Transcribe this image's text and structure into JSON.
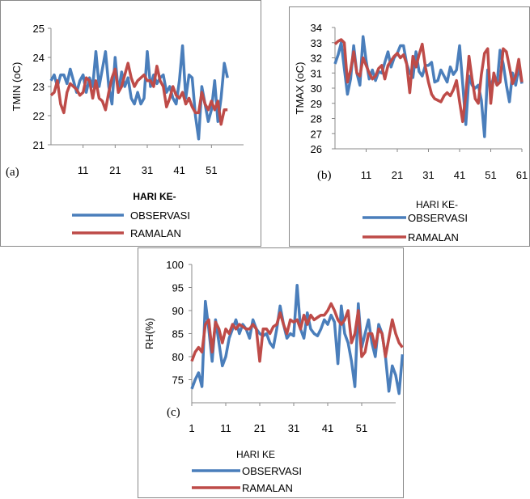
{
  "chart_data": [
    {
      "type": "line",
      "panel_label": "(a)",
      "ylabel": "TMIN (oC)",
      "xlabel": "HARI KE-",
      "ylim": [
        21,
        25
      ],
      "yticks": [
        21,
        22,
        23,
        24,
        25
      ],
      "xlim": [
        1,
        61
      ],
      "xticks": [
        "11",
        "21",
        "31",
        "41",
        "51"
      ],
      "xtick_values": [
        11,
        21,
        31,
        41,
        51
      ],
      "grid": false,
      "legend": "bottom",
      "colors": {
        "OBSERVASI": "#4a7ebb",
        "RAMALAN": "#be4b48"
      },
      "series": [
        {
          "name": "OBSERVASI",
          "x_start": 1,
          "values": [
            23.2,
            23.4,
            23.0,
            23.4,
            23.4,
            23.1,
            23.6,
            23.2,
            22.8,
            23.2,
            23.4,
            22.8,
            23.3,
            23.0,
            24.2,
            23.0,
            23.6,
            24.2,
            23.0,
            22.4,
            24.0,
            22.8,
            23.5,
            23.0,
            23.3,
            22.6,
            22.4,
            22.8,
            22.4,
            22.6,
            24.2,
            23.0,
            23.4,
            23.1,
            23.3,
            23.4,
            22.8,
            23.0,
            22.6,
            22.4,
            23.2,
            24.4,
            22.6,
            23.4,
            23.3,
            22.0,
            21.2,
            23.0,
            22.4,
            21.8,
            22.2,
            23.2,
            21.8,
            22.6,
            23.8,
            23.3
          ]
        },
        {
          "name": "RAMALAN",
          "x_start": 1,
          "values": [
            22.7,
            22.8,
            23.2,
            22.4,
            22.1,
            22.8,
            23.1,
            23.0,
            22.9,
            22.7,
            22.8,
            23.3,
            23.2,
            22.6,
            23.2,
            22.6,
            22.5,
            22.2,
            22.8,
            23.3,
            23.6,
            22.8,
            23.0,
            23.4,
            23.8,
            23.3,
            23.0,
            23.2,
            23.3,
            23.4,
            23.2,
            23.2,
            23.0,
            23.7,
            23.2,
            23.0,
            22.3,
            22.6,
            23.0,
            22.7,
            22.6,
            22.8,
            22.4,
            22.6,
            22.3,
            22.1,
            22.1,
            22.8,
            22.4,
            22.2,
            22.5,
            22.2,
            22.5,
            21.7,
            22.2,
            22.2
          ]
        }
      ]
    },
    {
      "type": "line",
      "panel_label": "(b)",
      "ylabel": "TMAX (oC)",
      "xlabel": "HARI KE-",
      "ylim": [
        26,
        34
      ],
      "yticks": [
        26,
        27,
        28,
        29,
        30,
        31,
        32,
        33,
        34
      ],
      "xlim": [
        1,
        61
      ],
      "xticks": [
        "11",
        "21",
        "31",
        "41",
        "51",
        "61"
      ],
      "xtick_values": [
        11,
        21,
        31,
        41,
        51,
        61
      ],
      "grid": false,
      "legend": "bottom",
      "colors": {
        "OBSERVASI": "#4a7ebb",
        "RAMALAN": "#be4b48"
      },
      "series": [
        {
          "name": "OBSERVASI",
          "x_start": 1,
          "values": [
            31.6,
            32.2,
            33.0,
            31.3,
            29.6,
            30.6,
            32.8,
            31.0,
            30.2,
            33.4,
            31.8,
            30.6,
            31.2,
            30.5,
            31.1,
            31.0,
            31.7,
            32.4,
            31.4,
            32.0,
            32.3,
            32.8,
            32.8,
            31.6,
            31.0,
            30.7,
            32.4,
            31.1,
            30.8,
            31.5,
            31.5,
            31.7,
            30.4,
            30.5,
            31.2,
            30.8,
            30.4,
            31.4,
            30.9,
            31.2,
            32.8,
            30.3,
            27.6,
            30.8,
            30.2,
            30.0,
            30.2,
            29.2,
            26.8,
            31.2,
            30.0,
            30.8,
            30.2,
            32.5,
            31.6,
            30.2,
            29.1,
            31.0,
            30.2,
            31.4,
            30.3
          ]
        },
        {
          "name": "RAMALAN",
          "x_start": 1,
          "values": [
            32.9,
            33.1,
            33.2,
            33.0,
            30.4,
            31.2,
            32.4,
            31.0,
            30.8,
            32.0,
            31.5,
            31.0,
            30.6,
            30.8,
            31.3,
            31.5,
            30.6,
            31.5,
            31.8,
            32.1,
            32.3,
            32.0,
            32.2,
            31.6,
            29.7,
            32.1,
            31.4,
            32.2,
            32.9,
            31.4,
            30.4,
            29.6,
            29.3,
            29.2,
            29.1,
            29.5,
            29.7,
            29.5,
            29.9,
            30.5,
            29.1,
            27.8,
            29.6,
            32.1,
            30.6,
            29.3,
            29.0,
            30.9,
            32.3,
            32.6,
            29.0,
            31.0,
            30.2,
            30.4,
            32.6,
            32.4,
            31.4,
            30.3,
            30.8,
            31.9,
            30.4
          ]
        }
      ]
    },
    {
      "type": "line",
      "panel_label": "(c)",
      "ylabel": "RH(%)",
      "xlabel": "HARI KE",
      "ylim": [
        70,
        100
      ],
      "yticks": [
        75,
        80,
        85,
        90,
        95,
        100
      ],
      "xlim": [
        1,
        61
      ],
      "xticks": [
        "1",
        "11",
        "21",
        "31",
        "41",
        "51"
      ],
      "xtick_values": [
        1,
        11,
        21,
        31,
        41,
        51
      ],
      "grid": false,
      "legend": "bottom",
      "colors": {
        "OBSERVASI": "#4a7ebb",
        "RAMALAN": "#be4b48"
      },
      "series": [
        {
          "name": "OBSERVASI",
          "x_start": 1,
          "values": [
            73,
            75,
            76.5,
            73.5,
            92,
            86,
            79,
            88,
            83,
            78,
            80,
            84,
            86,
            88,
            85,
            87,
            86,
            84,
            88,
            86,
            85,
            84.5,
            85,
            83,
            82,
            86,
            91,
            87,
            84,
            85,
            84.5,
            95.5,
            86,
            84,
            89.5,
            86,
            85,
            84.5,
            86,
            88,
            87,
            89,
            87.5,
            78.5,
            91,
            85,
            83,
            79,
            73.5,
            91.5,
            82,
            85,
            88,
            83,
            80,
            87,
            85,
            80,
            72.5,
            78,
            76,
            72,
            80.5
          ]
        },
        {
          "name": "RAMALAN",
          "x_start": 1,
          "values": [
            79,
            81,
            82,
            81,
            87,
            88,
            81,
            87.5,
            86,
            83,
            86,
            85,
            87,
            86,
            87,
            86.5,
            86,
            86,
            87,
            86,
            79,
            86,
            86,
            85,
            86.5,
            87,
            89.5,
            87,
            85,
            88,
            87.5,
            88,
            86,
            89,
            87,
            89,
            88,
            88.5,
            89,
            89,
            90,
            91.5,
            90,
            88,
            87,
            88,
            90,
            83,
            85,
            90,
            80,
            81,
            85,
            85,
            82,
            86,
            85,
            80,
            84,
            88,
            85,
            83,
            82
          ]
        }
      ]
    }
  ]
}
